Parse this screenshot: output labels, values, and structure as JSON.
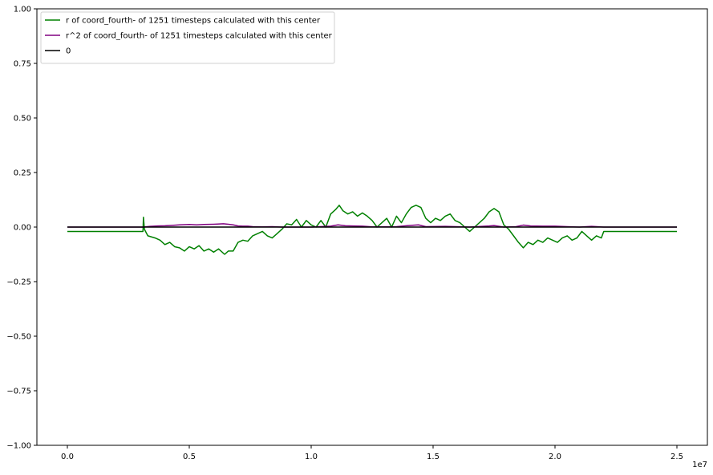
{
  "chart_data": {
    "type": "line",
    "title": "",
    "xlabel": "",
    "ylabel": "",
    "x_offset_label": "1e7",
    "xlim": [
      -0.125,
      2.625
    ],
    "ylim": [
      -1.0,
      1.0
    ],
    "x_ticks": [
      0.0,
      0.5,
      1.0,
      1.5,
      2.0,
      2.5
    ],
    "x_tick_labels": [
      "0.0",
      "0.5",
      "1.0",
      "1.5",
      "2.0",
      "2.5"
    ],
    "y_ticks": [
      -1.0,
      -0.75,
      -0.5,
      -0.25,
      0.0,
      0.25,
      0.5,
      0.75,
      1.0
    ],
    "y_tick_labels": [
      "−1.00",
      "−0.75",
      "−0.50",
      "−0.25",
      "0.00",
      "0.25",
      "0.50",
      "0.75",
      "1.00"
    ],
    "grid": false,
    "legend_position": "top-left",
    "series": [
      {
        "name": "r of coord_fourth- of 1251 timesteps calculated with this center",
        "color": "#008000",
        "points": [
          [
            0.0,
            -0.02
          ],
          [
            0.31,
            -0.02
          ],
          [
            0.312,
            0.045
          ],
          [
            0.316,
            -0.01
          ],
          [
            0.33,
            -0.04
          ],
          [
            0.36,
            -0.05
          ],
          [
            0.38,
            -0.06
          ],
          [
            0.4,
            -0.08
          ],
          [
            0.42,
            -0.07
          ],
          [
            0.44,
            -0.09
          ],
          [
            0.46,
            -0.095
          ],
          [
            0.48,
            -0.11
          ],
          [
            0.5,
            -0.09
          ],
          [
            0.52,
            -0.1
          ],
          [
            0.54,
            -0.085
          ],
          [
            0.56,
            -0.11
          ],
          [
            0.58,
            -0.1
          ],
          [
            0.6,
            -0.115
          ],
          [
            0.62,
            -0.1
          ],
          [
            0.645,
            -0.125
          ],
          [
            0.66,
            -0.11
          ],
          [
            0.68,
            -0.11
          ],
          [
            0.7,
            -0.07
          ],
          [
            0.72,
            -0.06
          ],
          [
            0.74,
            -0.065
          ],
          [
            0.76,
            -0.04
          ],
          [
            0.78,
            -0.03
          ],
          [
            0.8,
            -0.02
          ],
          [
            0.82,
            -0.04
          ],
          [
            0.84,
            -0.05
          ],
          [
            0.86,
            -0.03
          ],
          [
            0.88,
            -0.01
          ],
          [
            0.9,
            0.015
          ],
          [
            0.92,
            0.01
          ],
          [
            0.94,
            0.035
          ],
          [
            0.96,
            0.0
          ],
          [
            0.98,
            0.03
          ],
          [
            1.0,
            0.01
          ],
          [
            1.02,
            0.0
          ],
          [
            1.04,
            0.03
          ],
          [
            1.06,
            0.0
          ],
          [
            1.08,
            0.06
          ],
          [
            1.1,
            0.08
          ],
          [
            1.115,
            0.1
          ],
          [
            1.13,
            0.075
          ],
          [
            1.15,
            0.06
          ],
          [
            1.17,
            0.07
          ],
          [
            1.19,
            0.05
          ],
          [
            1.21,
            0.065
          ],
          [
            1.23,
            0.05
          ],
          [
            1.25,
            0.03
          ],
          [
            1.27,
            0.0
          ],
          [
            1.29,
            0.02
          ],
          [
            1.31,
            0.04
          ],
          [
            1.33,
            0.0
          ],
          [
            1.35,
            0.05
          ],
          [
            1.37,
            0.02
          ],
          [
            1.39,
            0.06
          ],
          [
            1.41,
            0.09
          ],
          [
            1.43,
            0.1
          ],
          [
            1.45,
            0.09
          ],
          [
            1.47,
            0.04
          ],
          [
            1.49,
            0.02
          ],
          [
            1.51,
            0.04
          ],
          [
            1.53,
            0.03
          ],
          [
            1.55,
            0.05
          ],
          [
            1.57,
            0.06
          ],
          [
            1.59,
            0.03
          ],
          [
            1.61,
            0.02
          ],
          [
            1.63,
            0.0
          ],
          [
            1.65,
            -0.02
          ],
          [
            1.67,
            0.0
          ],
          [
            1.69,
            0.02
          ],
          [
            1.71,
            0.04
          ],
          [
            1.73,
            0.07
          ],
          [
            1.75,
            0.085
          ],
          [
            1.77,
            0.07
          ],
          [
            1.79,
            0.01
          ],
          [
            1.81,
            -0.01
          ],
          [
            1.83,
            -0.04
          ],
          [
            1.85,
            -0.07
          ],
          [
            1.87,
            -0.095
          ],
          [
            1.89,
            -0.07
          ],
          [
            1.91,
            -0.08
          ],
          [
            1.93,
            -0.06
          ],
          [
            1.95,
            -0.07
          ],
          [
            1.97,
            -0.05
          ],
          [
            1.99,
            -0.06
          ],
          [
            2.01,
            -0.07
          ],
          [
            2.03,
            -0.05
          ],
          [
            2.05,
            -0.04
          ],
          [
            2.07,
            -0.06
          ],
          [
            2.09,
            -0.05
          ],
          [
            2.11,
            -0.02
          ],
          [
            2.13,
            -0.04
          ],
          [
            2.15,
            -0.06
          ],
          [
            2.17,
            -0.04
          ],
          [
            2.19,
            -0.05
          ],
          [
            2.2,
            -0.02
          ],
          [
            2.5,
            -0.02
          ]
        ]
      },
      {
        "name": "r^2 of coord_fourth- of 1251 timesteps calculated with this center",
        "color": "#800080",
        "points": [
          [
            0.0,
            0.0
          ],
          [
            0.31,
            0.0
          ],
          [
            0.34,
            0.003
          ],
          [
            0.37,
            0.005
          ],
          [
            0.4,
            0.006
          ],
          [
            0.43,
            0.008
          ],
          [
            0.46,
            0.01
          ],
          [
            0.5,
            0.012
          ],
          [
            0.53,
            0.01
          ],
          [
            0.56,
            0.012
          ],
          [
            0.6,
            0.013
          ],
          [
            0.64,
            0.015
          ],
          [
            0.66,
            0.013
          ],
          [
            0.68,
            0.01
          ],
          [
            0.7,
            0.005
          ],
          [
            0.72,
            0.004
          ],
          [
            0.74,
            0.004
          ],
          [
            0.76,
            0.002
          ],
          [
            0.8,
            0.001
          ],
          [
            0.84,
            0.002
          ],
          [
            0.88,
            0.0
          ],
          [
            1.0,
            0.0
          ],
          [
            1.08,
            0.004
          ],
          [
            1.11,
            0.01
          ],
          [
            1.14,
            0.006
          ],
          [
            1.17,
            0.005
          ],
          [
            1.21,
            0.004
          ],
          [
            1.25,
            0.001
          ],
          [
            1.35,
            0.002
          ],
          [
            1.41,
            0.008
          ],
          [
            1.44,
            0.01
          ],
          [
            1.47,
            0.002
          ],
          [
            1.55,
            0.003
          ],
          [
            1.65,
            0.0
          ],
          [
            1.73,
            0.005
          ],
          [
            1.75,
            0.007
          ],
          [
            1.79,
            0.0
          ],
          [
            1.84,
            0.002
          ],
          [
            1.87,
            0.009
          ],
          [
            1.9,
            0.005
          ],
          [
            1.95,
            0.004
          ],
          [
            2.0,
            0.004
          ],
          [
            2.05,
            0.002
          ],
          [
            2.1,
            0.0
          ],
          [
            2.15,
            0.003
          ],
          [
            2.2,
            0.0
          ],
          [
            2.5,
            0.0
          ]
        ]
      },
      {
        "name": "0",
        "color": "#000000",
        "points": [
          [
            0.0,
            0.0
          ],
          [
            2.5,
            0.0
          ]
        ]
      }
    ]
  }
}
